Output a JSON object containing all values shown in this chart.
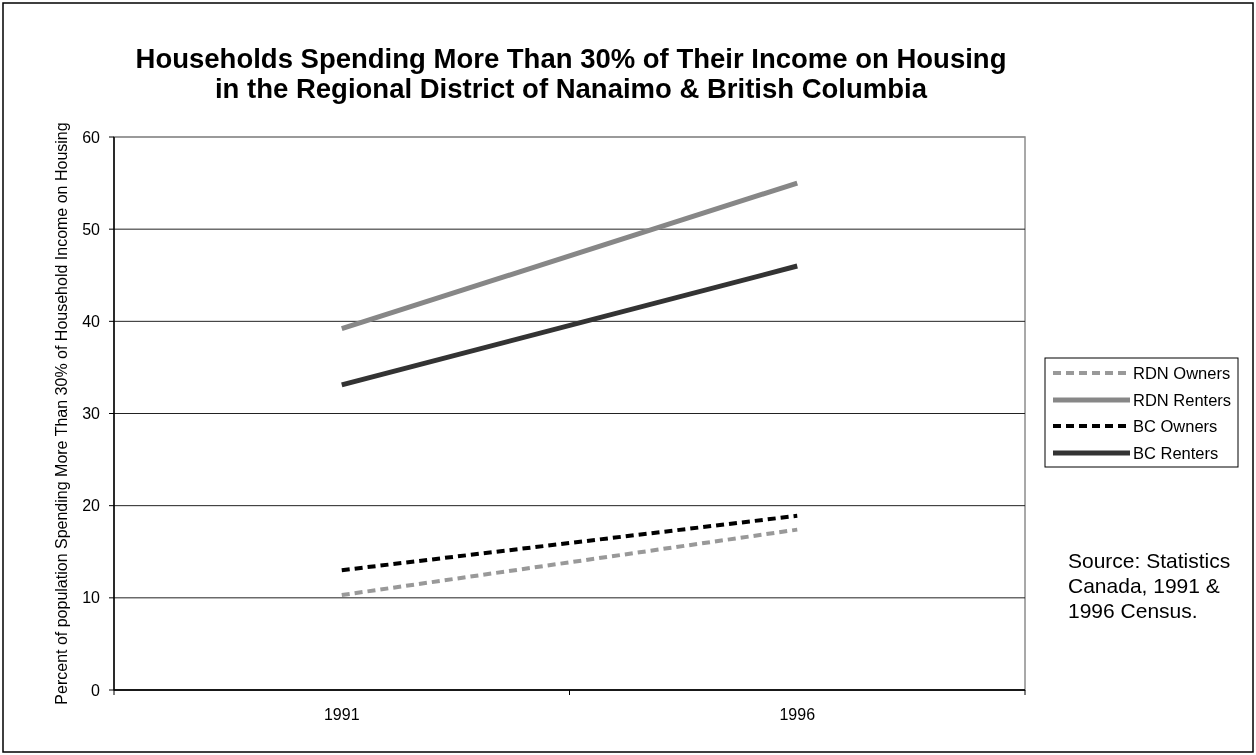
{
  "chart_data": {
    "type": "line",
    "title": "Households Spending More Than 30% of Their Income on Housing\nin the Regional District of Nanaimo & British Columbia",
    "ylabel": "Percent of population Spending More Than 30% of Household Income on Housing",
    "categories": [
      "1991",
      "1996"
    ],
    "series": [
      {
        "name": "RDN Owners",
        "color": "#999999",
        "line_style": "dashed",
        "values": [
          10.3,
          17.4
        ]
      },
      {
        "name": "RDN Renters",
        "color": "#878787",
        "line_style": "solid",
        "values": [
          39.2,
          55
        ]
      },
      {
        "name": "BC Owners",
        "color": "#000000",
        "line_style": "dashed",
        "values": [
          13,
          18.9
        ]
      },
      {
        "name": "BC Renters",
        "color": "#333333",
        "line_style": "solid",
        "values": [
          33.1,
          46
        ]
      }
    ],
    "ylim": [
      0,
      60
    ],
    "yticks": [
      0,
      10,
      20,
      30,
      40,
      50,
      60
    ],
    "grid": "y",
    "legend": "right",
    "annotations": [
      "Source: Statistics Canada, 1991 & 1996 Census."
    ]
  }
}
